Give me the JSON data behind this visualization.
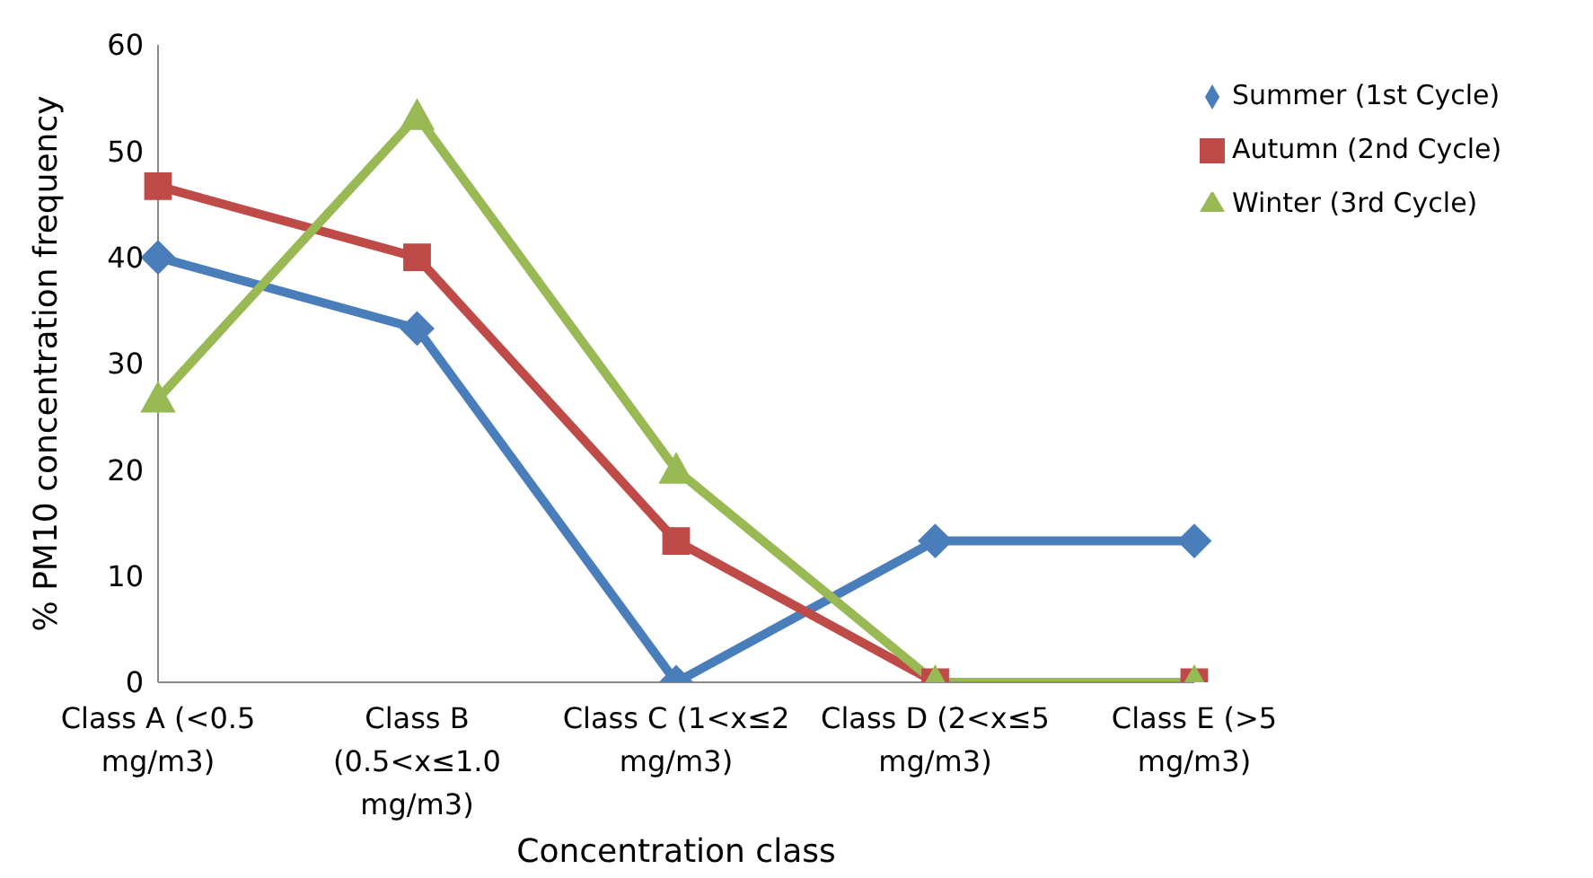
{
  "chart_data": {
    "type": "line",
    "xlabel": "Concentration class",
    "ylabel": "%  PM10 concentration frequency",
    "categories": [
      "Class A (<0.5 mg/m3)",
      "Class B (0.5<x≤1.0 mg/m3)",
      "Class C (1<x≤2 mg/m3)",
      "Class D (2<x≤5 mg/m3)",
      "Class E (>5 mg/m3)"
    ],
    "series": [
      {
        "name": "Summer (1st Cycle)",
        "color": "#4a7ebb",
        "marker": "diamond",
        "values": [
          40,
          33.3,
          0,
          13.3,
          13.3
        ]
      },
      {
        "name": "Autumn (2nd Cycle)",
        "color": "#be4b48",
        "marker": "square",
        "values": [
          46.7,
          40,
          13.3,
          0,
          0
        ]
      },
      {
        "name": "Winter (3rd Cycle)",
        "color": "#98b954",
        "marker": "triangle",
        "values": [
          26.7,
          53.3,
          20,
          0,
          0
        ]
      }
    ],
    "ylim": [
      0,
      60
    ],
    "yticks": [
      0,
      10,
      20,
      30,
      40,
      50,
      60
    ],
    "grid": false,
    "legend": "top right",
    "line_style": "solid"
  }
}
